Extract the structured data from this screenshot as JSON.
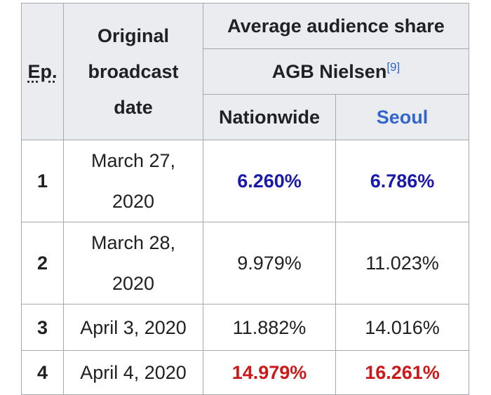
{
  "chart_data": {
    "type": "table",
    "headers": {
      "episode": "Ep.",
      "date": "Original broadcast date",
      "group": "Average audience share",
      "source": "AGB Nielsen",
      "source_ref": "[9]",
      "nationwide": "Nationwide",
      "seoul": "Seoul"
    },
    "rows": [
      {
        "ep": "1",
        "date": "March 27, 2020",
        "nationwide": "6.260%",
        "seoul": "6.786%"
      },
      {
        "ep": "2",
        "date": "March 28, 2020",
        "nationwide": "9.979%",
        "seoul": "11.023%"
      },
      {
        "ep": "3",
        "date": "April 3, 2020",
        "nationwide": "11.882%",
        "seoul": "14.016%"
      },
      {
        "ep": "4",
        "date": "April 4, 2020",
        "nationwide": "14.979%",
        "seoul": "16.261%"
      }
    ]
  },
  "colors": {
    "header_bg": "#eaecf0",
    "border": "#a2a9b1",
    "lowest": "#1a1aaa",
    "highest": "#cc1a1a",
    "link": "#3366cc"
  }
}
